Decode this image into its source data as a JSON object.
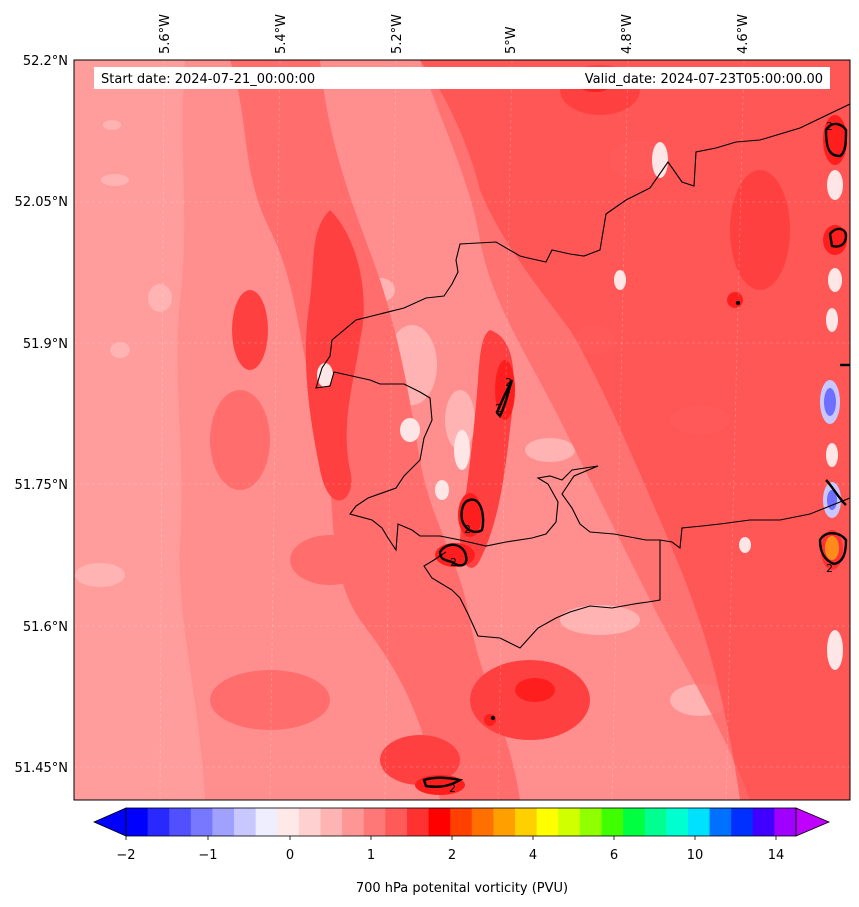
{
  "map": {
    "header": {
      "start": "Start date: 2024-07-21_00:00:00",
      "valid": "Valid_date: 2024-07-23T05:00:00.00"
    },
    "lon_labels": [
      "5.6°W",
      "5.4°W",
      "5.2°W",
      "5°W",
      "4.8°W",
      "4.6°W"
    ],
    "lat_labels": [
      "52.2°N",
      "52.05°N",
      "51.9°N",
      "51.75°N",
      "51.6°N",
      "51.45°N"
    ],
    "contour_label": "2",
    "colorbar": {
      "title": "700 hPa potenital vorticity (PVU)",
      "tick_labels": [
        "−2",
        "−1",
        "0",
        "1",
        "2",
        "4",
        "6",
        "10",
        "14"
      ],
      "colors": [
        "#0000ff",
        "#2828ff",
        "#5050ff",
        "#7878ff",
        "#a0a0ff",
        "#c8c8ff",
        "#eeeeff",
        "#ffe8e8",
        "#ffd0d0",
        "#ffb4b4",
        "#ff9696",
        "#ff7878",
        "#ff5a5a",
        "#ff3232",
        "#ff0000",
        "#ff4000",
        "#ff7000",
        "#ffa000",
        "#ffd000",
        "#ffff00",
        "#d0ff00",
        "#90ff00",
        "#40ff00",
        "#00ff40",
        "#00ff90",
        "#00ffd0",
        "#00e0ff",
        "#0070ff",
        "#0030ff",
        "#4000ff",
        "#a000ff"
      ],
      "under_color": "#0000ff",
      "over_color": "#c000ff"
    },
    "field_colors": {
      "base": "#ff8f8f",
      "west_band": "#ff9999",
      "mid": "#ff6b6b",
      "strong": "#ff3c3c",
      "peak": "#ff1e1e",
      "pale": "#ffb3b3",
      "white": "#ffe9e9",
      "blue": "#6f6fff",
      "orange": "#ff8c1a"
    }
  }
}
